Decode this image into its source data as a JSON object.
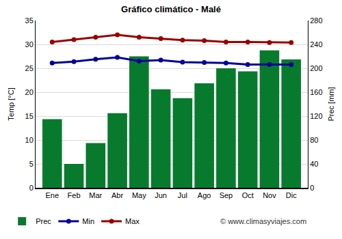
{
  "chart_data": {
    "type": "bar",
    "title": "Gráfico climático - Malé",
    "ylabel": "Temp [°C]",
    "y2label": "Prec [mm]",
    "categories": [
      "Ene",
      "Feb",
      "Mar",
      "Abr",
      "May",
      "Jun",
      "Jul",
      "Ago",
      "Sep",
      "Oct",
      "Nov",
      "Dic"
    ],
    "series": [
      {
        "name": "Prec",
        "type": "bar",
        "axis": "y2",
        "color": "#087a2e",
        "values": [
          115,
          40,
          75,
          125,
          220,
          165,
          150,
          175,
          200,
          195,
          230,
          215
        ]
      },
      {
        "name": "Min",
        "type": "line",
        "color": "#000099",
        "marker": "circle",
        "values": [
          26.1,
          26.4,
          26.9,
          27.3,
          26.5,
          26.7,
          26.3,
          26.2,
          26.1,
          25.8,
          25.8,
          25.8
        ]
      },
      {
        "name": "Max",
        "type": "line",
        "color": "#990000",
        "marker": "circle",
        "values": [
          30.5,
          31.0,
          31.5,
          32.0,
          31.5,
          31.2,
          30.9,
          30.8,
          30.5,
          30.5,
          30.4,
          30.4
        ]
      }
    ],
    "ylim": [
      0,
      35
    ],
    "yticks": [
      0,
      5,
      10,
      15,
      20,
      25,
      30,
      35
    ],
    "y2lim": [
      0,
      280
    ],
    "y2ticks": [
      0,
      40,
      80,
      120,
      160,
      200,
      240,
      280
    ],
    "grid": true,
    "legend": "bottom",
    "annotations": [
      "© www.climasyviajes.com"
    ]
  }
}
